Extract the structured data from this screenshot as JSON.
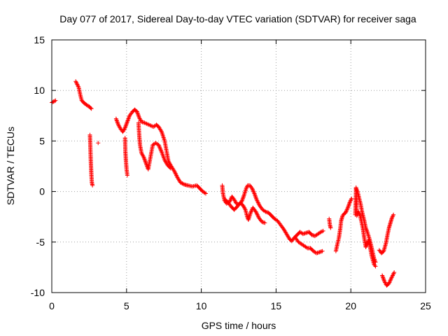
{
  "chart_data": {
    "type": "scatter",
    "title": "Day 077 of 2017, Sidereal Day-to-day VTEC variation (SDTVAR) for receiver saga",
    "xlabel": "GPS time / hours",
    "ylabel": "SDTVAR / TECUs",
    "xlim": [
      0,
      25
    ],
    "ylim": [
      -10,
      15
    ],
    "xticks": [
      0,
      5,
      10,
      15,
      20,
      25
    ],
    "yticks": [
      -10,
      -5,
      0,
      5,
      10,
      15
    ],
    "xtick_labels": [
      "0",
      "5",
      "10",
      "15",
      "20",
      "25"
    ],
    "ytick_labels": [
      "-10",
      "-5",
      "0",
      "5",
      "10",
      "15"
    ],
    "grid": true,
    "marker": "+",
    "color": "#ff0000",
    "series": [
      {
        "name": "SDTVAR",
        "segments": [
          [
            [
              0.0,
              8.8
            ],
            [
              0.25,
              9.0
            ]
          ],
          [
            [
              1.6,
              10.9
            ],
            [
              1.8,
              10.3
            ],
            [
              1.9,
              9.6
            ],
            [
              2.0,
              9.0
            ],
            [
              2.2,
              8.7
            ],
            [
              2.5,
              8.4
            ],
            [
              2.65,
              8.2
            ]
          ],
          [
            [
              2.55,
              5.6
            ],
            [
              2.57,
              4.8
            ],
            [
              2.6,
              3.4
            ],
            [
              2.62,
              2.6
            ],
            [
              2.65,
              1.6
            ],
            [
              2.68,
              0.9
            ],
            [
              2.72,
              0.6
            ]
          ],
          [
            [
              3.1,
              4.8
            ]
          ],
          [
            [
              4.3,
              7.2
            ],
            [
              4.45,
              6.6
            ],
            [
              4.6,
              6.2
            ],
            [
              4.75,
              5.9
            ],
            [
              4.9,
              6.3
            ],
            [
              5.05,
              6.9
            ],
            [
              5.2,
              7.5
            ],
            [
              5.4,
              7.9
            ],
            [
              5.55,
              8.1
            ],
            [
              5.7,
              7.9
            ],
            [
              5.85,
              7.3
            ],
            [
              6.0,
              6.9
            ],
            [
              6.2,
              6.8
            ],
            [
              6.5,
              6.6
            ],
            [
              6.8,
              6.4
            ],
            [
              7.0,
              6.6
            ],
            [
              7.15,
              6.4
            ],
            [
              7.35,
              5.9
            ],
            [
              7.55,
              5.0
            ],
            [
              7.7,
              3.8
            ],
            [
              7.8,
              3.0
            ],
            [
              7.95,
              2.6
            ],
            [
              8.2,
              2.0
            ],
            [
              8.4,
              1.4
            ],
            [
              8.6,
              0.9
            ],
            [
              8.85,
              0.7
            ],
            [
              9.1,
              0.6
            ],
            [
              9.4,
              0.5
            ],
            [
              9.7,
              0.6
            ],
            [
              9.9,
              0.3
            ],
            [
              10.1,
              0.0
            ],
            [
              10.3,
              -0.2
            ]
          ],
          [
            [
              4.9,
              5.3
            ],
            [
              4.92,
              4.0
            ],
            [
              4.96,
              3.0
            ],
            [
              5.0,
              2.2
            ],
            [
              5.05,
              1.6
            ]
          ],
          [
            [
              5.8,
              6.8
            ],
            [
              5.85,
              5.5
            ],
            [
              5.9,
              4.6
            ],
            [
              6.0,
              3.8
            ],
            [
              6.15,
              3.4
            ],
            [
              6.3,
              2.8
            ],
            [
              6.45,
              2.2
            ],
            [
              6.6,
              3.4
            ],
            [
              6.75,
              4.6
            ],
            [
              6.95,
              4.8
            ],
            [
              7.15,
              4.6
            ],
            [
              7.35,
              3.9
            ],
            [
              7.55,
              3.1
            ],
            [
              7.75,
              2.6
            ],
            [
              7.95,
              2.3
            ]
          ],
          [
            [
              11.4,
              0.6
            ],
            [
              11.45,
              -0.2
            ],
            [
              11.55,
              -0.9
            ],
            [
              11.7,
              -1.2
            ],
            [
              11.9,
              -1.0
            ],
            [
              12.05,
              -0.5
            ],
            [
              12.2,
              -0.8
            ],
            [
              12.35,
              -1.2
            ],
            [
              12.5,
              -1.3
            ],
            [
              12.7,
              -1.0
            ],
            [
              12.85,
              -0.4
            ],
            [
              13.0,
              0.3
            ],
            [
              13.1,
              0.6
            ],
            [
              13.25,
              0.6
            ],
            [
              13.4,
              0.3
            ],
            [
              13.55,
              -0.2
            ],
            [
              13.7,
              -0.8
            ],
            [
              13.9,
              -1.4
            ],
            [
              14.1,
              -1.8
            ],
            [
              14.3,
              -2.0
            ],
            [
              14.5,
              -2.1
            ],
            [
              14.7,
              -2.4
            ],
            [
              14.9,
              -2.7
            ],
            [
              15.1,
              -2.9
            ],
            [
              15.3,
              -3.3
            ],
            [
              15.5,
              -3.7
            ],
            [
              15.7,
              -4.2
            ],
            [
              15.9,
              -4.7
            ],
            [
              16.05,
              -4.9
            ],
            [
              16.2,
              -4.6
            ],
            [
              16.4,
              -4.3
            ],
            [
              16.6,
              -4.0
            ],
            [
              16.8,
              -4.2
            ],
            [
              17.0,
              -4.1
            ],
            [
              17.2,
              -4.0
            ],
            [
              17.4,
              -4.3
            ],
            [
              17.6,
              -4.4
            ],
            [
              17.8,
              -4.2
            ],
            [
              18.0,
              -4.0
            ],
            [
              18.15,
              -3.9
            ]
          ],
          [
            [
              11.6,
              -0.8
            ],
            [
              11.8,
              -1.1
            ],
            [
              12.0,
              -1.5
            ],
            [
              12.2,
              -1.8
            ],
            [
              12.4,
              -1.5
            ],
            [
              12.6,
              -1.1
            ],
            [
              12.8,
              -1.4
            ],
            [
              12.95,
              -1.8
            ],
            [
              13.05,
              -2.4
            ],
            [
              13.15,
              -2.8
            ],
            [
              13.3,
              -2.1
            ],
            [
              13.45,
              -1.6
            ],
            [
              13.65,
              -2.0
            ],
            [
              13.85,
              -2.6
            ],
            [
              14.05,
              -3.0
            ],
            [
              14.25,
              -3.1
            ]
          ],
          [
            [
              16.3,
              -4.6
            ],
            [
              16.5,
              -5.0
            ],
            [
              16.7,
              -5.2
            ],
            [
              16.9,
              -5.4
            ],
            [
              17.1,
              -5.6
            ],
            [
              17.3,
              -5.6
            ],
            [
              17.5,
              -5.9
            ],
            [
              17.7,
              -6.1
            ],
            [
              17.9,
              -6.0
            ],
            [
              18.1,
              -5.9
            ]
          ],
          [
            [
              18.55,
              -2.7
            ],
            [
              18.6,
              -3.3
            ],
            [
              18.65,
              -3.6
            ]
          ],
          [
            [
              19.0,
              -5.9
            ],
            [
              19.1,
              -5.2
            ],
            [
              19.2,
              -4.6
            ],
            [
              19.3,
              -3.6
            ],
            [
              19.35,
              -2.9
            ],
            [
              19.45,
              -2.4
            ],
            [
              19.55,
              -2.2
            ],
            [
              19.65,
              -2.1
            ],
            [
              19.8,
              -1.6
            ],
            [
              19.95,
              -1.0
            ],
            [
              20.05,
              -0.7
            ]
          ],
          [
            [
              20.3,
              -2.3
            ],
            [
              20.35,
              0.4
            ],
            [
              20.4,
              -2.4
            ],
            [
              20.5,
              -2.0
            ],
            [
              20.6,
              -2.3
            ],
            [
              20.7,
              -2.9
            ],
            [
              20.8,
              -3.6
            ],
            [
              20.9,
              -4.6
            ],
            [
              21.0,
              -5.5
            ],
            [
              21.1,
              -5.1
            ],
            [
              21.2,
              -4.8
            ],
            [
              21.3,
              -5.6
            ],
            [
              21.4,
              -6.4
            ],
            [
              21.55,
              -7.2
            ],
            [
              21.65,
              -7.4
            ]
          ],
          [
            [
              20.35,
              0.3
            ],
            [
              20.45,
              0.0
            ],
            [
              20.55,
              -0.6
            ],
            [
              20.65,
              -1.2
            ],
            [
              20.75,
              -2.0
            ],
            [
              20.9,
              -2.9
            ],
            [
              21.0,
              -3.6
            ],
            [
              21.1,
              -4.0
            ],
            [
              21.25,
              -4.7
            ],
            [
              21.4,
              -5.6
            ],
            [
              21.55,
              -6.6
            ],
            [
              21.65,
              -7.0
            ]
          ],
          [
            [
              21.9,
              -5.8
            ],
            [
              22.05,
              -6.1
            ],
            [
              22.2,
              -5.9
            ],
            [
              22.35,
              -5.1
            ],
            [
              22.45,
              -4.3
            ],
            [
              22.55,
              -3.6
            ],
            [
              22.65,
              -3.1
            ],
            [
              22.75,
              -2.6
            ],
            [
              22.85,
              -2.3
            ]
          ],
          [
            [
              22.1,
              -8.3
            ],
            [
              22.25,
              -8.9
            ],
            [
              22.4,
              -9.3
            ],
            [
              22.55,
              -9.1
            ],
            [
              22.7,
              -8.6
            ],
            [
              22.8,
              -8.3
            ],
            [
              22.9,
              -8.0
            ]
          ]
        ]
      }
    ]
  }
}
